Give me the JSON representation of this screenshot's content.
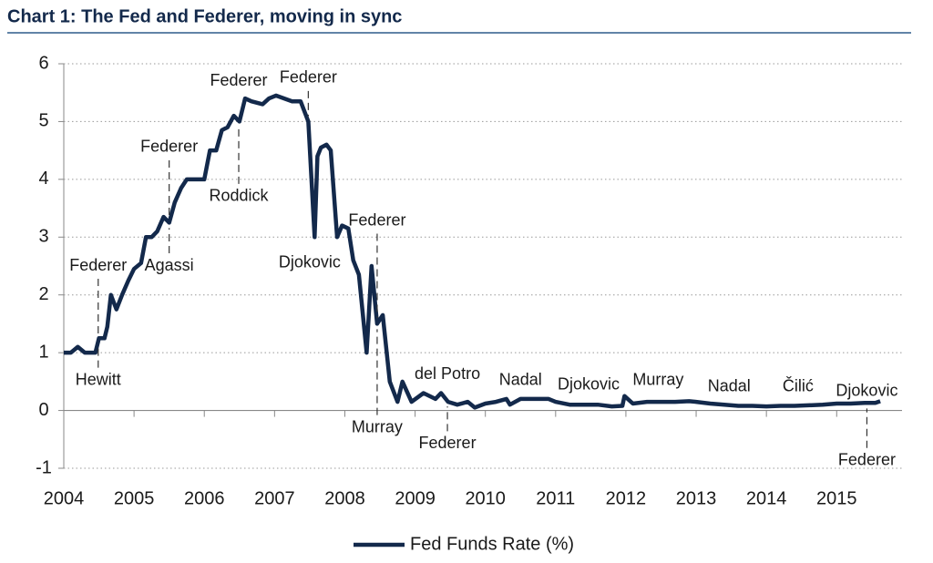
{
  "chart_data": {
    "type": "line",
    "title": "Chart 1: The Fed and Federer, moving in sync",
    "xlim": [
      2004,
      2015.93
    ],
    "xticks": [
      2004,
      2005,
      2006,
      2007,
      2008,
      2009,
      2010,
      2011,
      2012,
      2013,
      2014,
      2015
    ],
    "ylim": [
      -1,
      6
    ],
    "yticks": [
      -1,
      0,
      1,
      2,
      3,
      4,
      5,
      6
    ],
    "grid": true,
    "legend": "bottom",
    "series": [
      {
        "name": "Fed Funds Rate (%)",
        "color": "#13294b",
        "x": [
          2004.0,
          2004.1,
          2004.2,
          2004.3,
          2004.45,
          2004.5,
          2004.58,
          2004.62,
          2004.67,
          2004.75,
          2004.83,
          2004.92,
          2005.0,
          2005.1,
          2005.17,
          2005.25,
          2005.33,
          2005.42,
          2005.5,
          2005.58,
          2005.67,
          2005.75,
          2006.0,
          2006.08,
          2006.17,
          2006.25,
          2006.33,
          2006.42,
          2006.5,
          2006.58,
          2006.67,
          2006.83,
          2006.92,
          2007.02,
          2007.25,
          2007.37,
          2007.48,
          2007.57,
          2007.61,
          2007.66,
          2007.74,
          2007.8,
          2007.89,
          2007.96,
          2008.05,
          2008.12,
          2008.2,
          2008.31,
          2008.38,
          2008.46,
          2008.54,
          2008.64,
          2008.75,
          2008.82,
          2008.95,
          2009.12,
          2009.29,
          2009.37,
          2009.47,
          2009.6,
          2009.75,
          2009.85,
          2010.0,
          2010.15,
          2010.3,
          2010.35,
          2010.5,
          2010.7,
          2010.9,
          2011.0,
          2011.2,
          2011.4,
          2011.6,
          2011.8,
          2011.95,
          2011.98,
          2012.1,
          2012.3,
          2012.5,
          2012.7,
          2012.9,
          2013.0,
          2013.2,
          2013.4,
          2013.6,
          2013.8,
          2014.0,
          2014.2,
          2014.4,
          2014.6,
          2014.8,
          2015.0,
          2015.2,
          2015.4,
          2015.55,
          2015.62
        ],
        "values": [
          1.0,
          1.0,
          1.1,
          1.0,
          1.0,
          1.25,
          1.25,
          1.45,
          2.0,
          1.75,
          2.0,
          2.25,
          2.45,
          2.55,
          3.0,
          3.0,
          3.1,
          3.35,
          3.25,
          3.6,
          3.85,
          4.0,
          4.0,
          4.5,
          4.5,
          4.85,
          4.9,
          5.1,
          5.0,
          5.4,
          5.35,
          5.3,
          5.4,
          5.45,
          5.35,
          5.35,
          5.0,
          3.0,
          4.4,
          4.55,
          4.6,
          4.5,
          3.0,
          3.2,
          3.15,
          2.6,
          2.35,
          1.0,
          2.5,
          1.5,
          1.65,
          0.5,
          0.15,
          0.5,
          0.15,
          0.3,
          0.2,
          0.3,
          0.15,
          0.1,
          0.15,
          0.05,
          0.12,
          0.15,
          0.2,
          0.1,
          0.2,
          0.2,
          0.2,
          0.15,
          0.1,
          0.1,
          0.1,
          0.07,
          0.08,
          0.25,
          0.12,
          0.15,
          0.15,
          0.15,
          0.16,
          0.15,
          0.12,
          0.1,
          0.08,
          0.08,
          0.07,
          0.08,
          0.08,
          0.09,
          0.1,
          0.12,
          0.12,
          0.13,
          0.13,
          0.16
        ]
      }
    ],
    "annotations": [
      {
        "text": "Federer",
        "x": 2004.49,
        "y": 2.5,
        "dashed": true
      },
      {
        "text": "Hewitt",
        "x": 2004.49,
        "y": 0.52,
        "dashed": true
      },
      {
        "text": "Federer",
        "x": 2005.5,
        "y": 4.55,
        "dashed": true
      },
      {
        "text": "Agassi",
        "x": 2005.5,
        "y": 2.5,
        "dashed": true
      },
      {
        "text": "Federer",
        "x": 2006.49,
        "y": 5.7,
        "dashed": false
      },
      {
        "text": "Roddick",
        "x": 2006.49,
        "y": 3.7,
        "dashed": true
      },
      {
        "text": "Federer",
        "x": 2007.48,
        "y": 5.75,
        "dashed": true
      },
      {
        "text": "Djokovic",
        "x": 2007.5,
        "y": 2.55,
        "dashed": false
      },
      {
        "text": "Federer",
        "x": 2008.46,
        "y": 3.28,
        "dashed": true
      },
      {
        "text": "Murray",
        "x": 2008.46,
        "y": -0.3,
        "dashed": true
      },
      {
        "text": "del Potro",
        "x": 2009.46,
        "y": 0.62,
        "dashed": false
      },
      {
        "text": "Federer",
        "x": 2009.46,
        "y": -0.58,
        "dashed": true
      },
      {
        "text": "Nadal",
        "x": 2010.5,
        "y": 0.52,
        "dashed": false
      },
      {
        "text": "Djokovic",
        "x": 2011.47,
        "y": 0.44,
        "dashed": false
      },
      {
        "text": "Murray",
        "x": 2012.46,
        "y": 0.52,
        "dashed": false
      },
      {
        "text": "Nadal",
        "x": 2013.47,
        "y": 0.41,
        "dashed": false
      },
      {
        "text": "Čilić",
        "x": 2014.45,
        "y": 0.41,
        "dashed": false
      },
      {
        "text": "Djokovic",
        "x": 2015.43,
        "y": 0.33,
        "dashed": false
      },
      {
        "text": "Federer",
        "x": 2015.43,
        "y": -0.87,
        "dashed": true
      }
    ]
  }
}
